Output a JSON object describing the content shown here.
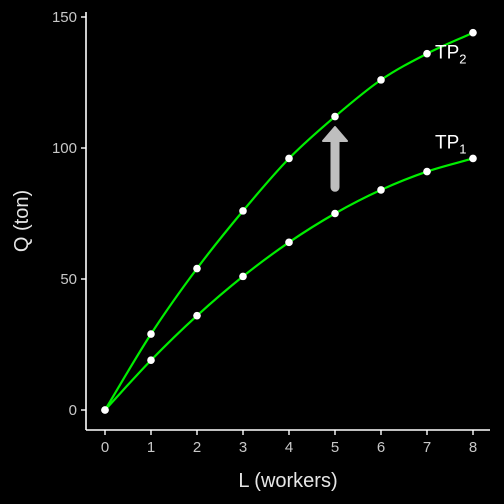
{
  "chart_data": {
    "type": "line",
    "title": "",
    "xlabel": "L (workers)",
    "ylabel": "Q (ton)",
    "xlim": [
      0,
      8
    ],
    "ylim": [
      0,
      150
    ],
    "x_ticks": [
      0,
      1,
      2,
      3,
      4,
      5,
      6,
      7,
      8
    ],
    "y_ticks": [
      0,
      50,
      100,
      150
    ],
    "grid": false,
    "legend": "none",
    "series": [
      {
        "name": "TP1",
        "label_main": "TP",
        "label_sub": "1",
        "color": "#00ee00",
        "x": [
          0,
          1,
          2,
          3,
          4,
          5,
          6,
          7,
          8
        ],
        "values": [
          0,
          19,
          36,
          51,
          64,
          75,
          84,
          91,
          96
        ]
      },
      {
        "name": "TP2",
        "label_main": "TP",
        "label_sub": "2",
        "color": "#00ee00",
        "x": [
          0,
          1,
          2,
          3,
          4,
          5,
          6,
          7,
          8
        ],
        "values": [
          0,
          29,
          54,
          76,
          96,
          112,
          126,
          136,
          144
        ]
      }
    ],
    "annotations": [
      {
        "type": "arrow",
        "x": 5,
        "y_from": 85,
        "y_to": 108,
        "color": "#bebebe"
      }
    ]
  }
}
